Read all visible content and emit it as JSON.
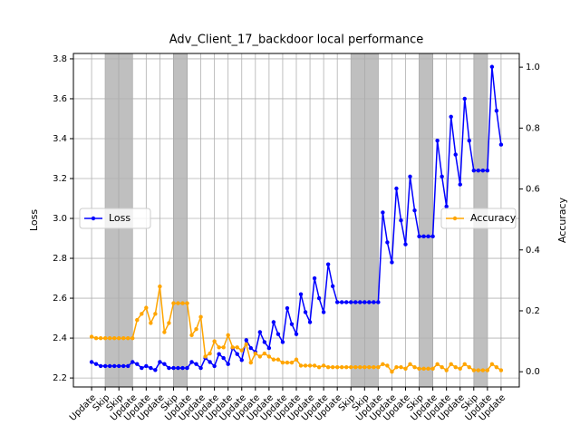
{
  "chart_data": {
    "type": "line",
    "title": "Adv_Client_17_backdoor local performance",
    "ylabel": "Loss",
    "y2label": "Accuracy",
    "categories": [
      "Update",
      null,
      null,
      "Skip",
      null,
      null,
      "Skip",
      null,
      null,
      "Update",
      null,
      null,
      "Update",
      null,
      null,
      "Update",
      null,
      null,
      "Skip",
      null,
      null,
      "Update",
      null,
      null,
      "Update",
      null,
      null,
      "Update",
      null,
      null,
      "Update",
      null,
      null,
      "Update",
      null,
      null,
      "Update",
      null,
      null,
      "Update",
      null,
      null,
      "Update",
      null,
      null,
      "Update",
      null,
      null,
      "Update",
      null,
      null,
      "Update",
      null,
      null,
      "Update",
      null,
      null,
      "Skip",
      null,
      null,
      "Skip",
      null,
      null,
      "Update",
      null,
      null,
      "Update",
      null,
      null,
      "Update",
      null,
      null,
      "Skip",
      null,
      null,
      "Update",
      null,
      null,
      "Update",
      null,
      null,
      "Update",
      null,
      null,
      "Skip",
      null,
      null,
      "Update",
      null,
      null,
      "Update"
    ],
    "series": [
      {
        "name": "Loss",
        "color": "#0000ff",
        "axis": "y",
        "values": [
          2.28,
          2.27,
          2.26,
          2.26,
          2.26,
          2.26,
          2.26,
          2.26,
          2.26,
          2.28,
          2.27,
          2.25,
          2.26,
          2.25,
          2.24,
          2.28,
          2.27,
          2.25,
          2.25,
          2.25,
          2.25,
          2.25,
          2.28,
          2.27,
          2.25,
          2.3,
          2.28,
          2.26,
          2.32,
          2.3,
          2.27,
          2.35,
          2.32,
          2.29,
          2.39,
          2.35,
          2.33,
          2.43,
          2.38,
          2.35,
          2.48,
          2.42,
          2.38,
          2.55,
          2.47,
          2.42,
          2.62,
          2.53,
          2.48,
          2.7,
          2.6,
          2.53,
          2.77,
          2.66,
          2.58,
          2.58,
          2.58,
          2.58,
          2.58,
          2.58,
          2.58,
          2.58,
          2.58,
          2.58,
          3.03,
          2.88,
          2.78,
          3.15,
          2.99,
          2.87,
          3.21,
          3.04,
          2.91,
          2.91,
          2.91,
          2.91,
          3.39,
          3.21,
          3.06,
          3.51,
          3.32,
          3.17,
          3.6,
          3.39,
          3.24,
          3.24,
          3.24,
          3.24,
          3.76,
          3.54,
          3.37
        ]
      },
      {
        "name": "Accuracy",
        "color": "#ffa500",
        "axis": "y2",
        "values": [
          0.115,
          0.11,
          0.11,
          0.11,
          0.11,
          0.11,
          0.11,
          0.11,
          0.11,
          0.11,
          0.17,
          0.19,
          0.21,
          0.16,
          0.19,
          0.28,
          0.13,
          0.16,
          0.225,
          0.225,
          0.225,
          0.225,
          0.12,
          0.14,
          0.18,
          0.05,
          0.06,
          0.1,
          0.08,
          0.08,
          0.12,
          0.08,
          0.08,
          0.07,
          0.09,
          0.03,
          0.06,
          0.05,
          0.06,
          0.05,
          0.04,
          0.04,
          0.03,
          0.03,
          0.03,
          0.04,
          0.02,
          0.02,
          0.02,
          0.02,
          0.015,
          0.02,
          0.015,
          0.015,
          0.015,
          0.015,
          0.015,
          0.015,
          0.015,
          0.015,
          0.015,
          0.015,
          0.015,
          0.015,
          0.025,
          0.02,
          0.0,
          0.015,
          0.015,
          0.01,
          0.025,
          0.015,
          0.01,
          0.01,
          0.01,
          0.01,
          0.025,
          0.015,
          0.005,
          0.025,
          0.015,
          0.01,
          0.025,
          0.015,
          0.005,
          0.005,
          0.005,
          0.005,
          0.025,
          0.015,
          0.005
        ]
      }
    ],
    "ylim": [
      2.155,
      3.827
    ],
    "yticks": [
      2.2,
      2.4,
      2.6,
      2.8,
      {
        "value": 3.0,
        "label": "3.0"
      },
      3.2,
      3.4,
      3.6,
      3.8
    ],
    "y2lim": [
      -0.05,
      1.045
    ],
    "y2ticks": [
      {
        "value": 0,
        "label": "0.0"
      },
      0.2,
      0.4,
      0.6,
      0.8,
      {
        "value": 1,
        "label": "1.0"
      }
    ],
    "shaded_spans": [
      [
        3,
        6
      ],
      [
        6,
        9
      ],
      [
        18,
        21
      ],
      [
        57,
        60
      ],
      [
        60,
        63
      ],
      [
        72,
        75
      ],
      [
        84,
        87
      ]
    ],
    "shade_color": "#808080",
    "grid": true
  }
}
